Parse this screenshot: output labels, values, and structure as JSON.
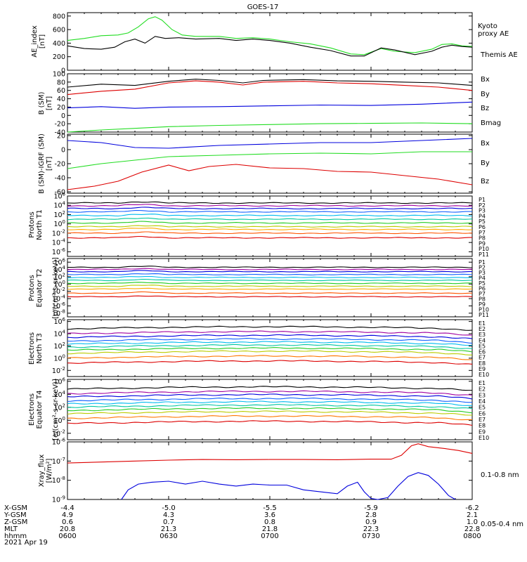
{
  "title": "GOES-17",
  "date": "2021 Apr 19",
  "colors": {
    "black": "#000000",
    "green": "#22dd22",
    "blue": "#0000dd",
    "red": "#dd0000"
  },
  "ramp11": [
    "#000000",
    "#a000a0",
    "#0000dd",
    "#1060ff",
    "#00bbee",
    "#00c8a0",
    "#22cc22",
    "#bbcc00",
    "#ffaa00",
    "#ff5500",
    "#dd0000"
  ],
  "ramp10": [
    "#000000",
    "#a000a0",
    "#0000dd",
    "#1060ff",
    "#00bbee",
    "#00c8a0",
    "#22cc22",
    "#bbcc00",
    "#ff7700",
    "#dd0000"
  ],
  "footer": {
    "row_labels": [
      "X-GSM",
      "Y-GSM",
      "Z-GSM",
      "MLT",
      "hhmm"
    ],
    "columns": [
      {
        "values": [
          "-4.4",
          "4.9",
          "0.6",
          "20.8",
          "0600"
        ]
      },
      {
        "values": [
          "-5.0",
          "4.3",
          "0.7",
          "21.3",
          "0630"
        ]
      },
      {
        "values": [
          "-5.5",
          "3.6",
          "0.8",
          "21.8",
          "0700"
        ]
      },
      {
        "values": [
          "-5.9",
          "2.8",
          "0.9",
          "22.3",
          "0730"
        ]
      },
      {
        "values": [
          "-6.2",
          "2.1",
          "1.0",
          "22.8",
          "0800"
        ]
      }
    ]
  },
  "chart_data": [
    {
      "type": "line",
      "ylabel": "AE_index [nT]",
      "ylim": [
        0,
        850
      ],
      "yticks": [
        "0",
        "200",
        "400",
        "600",
        "800"
      ],
      "x": [
        "0600",
        "0630",
        "0700",
        "0730",
        "0800"
      ],
      "series": [
        {
          "name": "Kyoto proxy AE",
          "color": "#22dd22",
          "points": [
            [
              0,
              440
            ],
            [
              5,
              470
            ],
            [
              10,
              510
            ],
            [
              15,
              520
            ],
            [
              18,
              550
            ],
            [
              21,
              640
            ],
            [
              24,
              760
            ],
            [
              26,
              790
            ],
            [
              28,
              740
            ],
            [
              31,
              600
            ],
            [
              34,
              520
            ],
            [
              38,
              500
            ],
            [
              45,
              500
            ],
            [
              50,
              470
            ],
            [
              55,
              480
            ],
            [
              60,
              460
            ],
            [
              66,
              420
            ],
            [
              72,
              390
            ],
            [
              78,
              330
            ],
            [
              84,
              240
            ],
            [
              88,
              230
            ],
            [
              93,
              320
            ],
            [
              97,
              280
            ],
            [
              103,
              260
            ],
            [
              108,
              310
            ],
            [
              111,
              380
            ],
            [
              114,
              390
            ],
            [
              117,
              360
            ],
            [
              120,
              350
            ]
          ]
        },
        {
          "name": "Themis AE",
          "color": "#000000",
          "points": [
            [
              0,
              360
            ],
            [
              5,
              320
            ],
            [
              10,
              310
            ],
            [
              14,
              340
            ],
            [
              17,
              420
            ],
            [
              20,
              460
            ],
            [
              23,
              400
            ],
            [
              26,
              500
            ],
            [
              29,
              470
            ],
            [
              33,
              480
            ],
            [
              38,
              460
            ],
            [
              45,
              470
            ],
            [
              50,
              440
            ],
            [
              55,
              460
            ],
            [
              60,
              440
            ],
            [
              66,
              400
            ],
            [
              72,
              340
            ],
            [
              78,
              290
            ],
            [
              84,
              210
            ],
            [
              88,
              210
            ],
            [
              93,
              330
            ],
            [
              97,
              300
            ],
            [
              103,
              230
            ],
            [
              108,
              280
            ],
            [
              111,
              340
            ],
            [
              114,
              370
            ],
            [
              117,
              350
            ],
            [
              120,
              340
            ]
          ]
        }
      ]
    },
    {
      "type": "line",
      "ylabel": "B (SM) [nT]",
      "ylim": [
        -40,
        100
      ],
      "yticks": [
        "-40",
        "-20",
        "0",
        "20",
        "40",
        "60",
        "80",
        "100"
      ],
      "series": [
        {
          "name": "Bx",
          "color": "#0000dd",
          "points": [
            [
              0,
              18
            ],
            [
              10,
              21
            ],
            [
              20,
              17
            ],
            [
              30,
              20
            ],
            [
              45,
              21
            ],
            [
              60,
              23
            ],
            [
              75,
              25
            ],
            [
              90,
              24
            ],
            [
              105,
              27
            ],
            [
              120,
              32
            ]
          ]
        },
        {
          "name": "By",
          "color": "#22dd22",
          "points": [
            [
              0,
              -40
            ],
            [
              10,
              -35
            ],
            [
              20,
              -31
            ],
            [
              30,
              -27
            ],
            [
              45,
              -24
            ],
            [
              60,
              -22
            ],
            [
              75,
              -20
            ],
            [
              90,
              -19
            ],
            [
              105,
              -18
            ],
            [
              120,
              -20
            ]
          ]
        },
        {
          "name": "Bz",
          "color": "#dd0000",
          "points": [
            [
              0,
              50
            ],
            [
              10,
              58
            ],
            [
              20,
              63
            ],
            [
              30,
              78
            ],
            [
              38,
              83
            ],
            [
              45,
              80
            ],
            [
              52,
              73
            ],
            [
              58,
              80
            ],
            [
              70,
              82
            ],
            [
              80,
              78
            ],
            [
              90,
              76
            ],
            [
              100,
              72
            ],
            [
              110,
              68
            ],
            [
              120,
              60
            ]
          ]
        },
        {
          "name": "Bmag",
          "color": "#000000",
          "points": [
            [
              0,
              68
            ],
            [
              10,
              75
            ],
            [
              20,
              72
            ],
            [
              30,
              82
            ],
            [
              38,
              87
            ],
            [
              45,
              84
            ],
            [
              52,
              78
            ],
            [
              58,
              84
            ],
            [
              70,
              86
            ],
            [
              80,
              83
            ],
            [
              90,
              82
            ],
            [
              100,
              80
            ],
            [
              110,
              78
            ],
            [
              120,
              72
            ]
          ]
        }
      ]
    },
    {
      "type": "line",
      "ylabel": "B (SM)-IGRF (SM) [nT]",
      "ylim": [
        -62,
        22
      ],
      "yticks": [
        "-60",
        "-40",
        "-20",
        "0",
        "20"
      ],
      "series": [
        {
          "name": "Bx",
          "color": "#0000dd",
          "points": [
            [
              0,
              13
            ],
            [
              10,
              10
            ],
            [
              20,
              3
            ],
            [
              30,
              2
            ],
            [
              45,
              6
            ],
            [
              60,
              8
            ],
            [
              75,
              10
            ],
            [
              90,
              10
            ],
            [
              105,
              13
            ],
            [
              120,
              16
            ]
          ]
        },
        {
          "name": "By",
          "color": "#22dd22",
          "points": [
            [
              0,
              -27
            ],
            [
              10,
              -20
            ],
            [
              20,
              -15
            ],
            [
              30,
              -10
            ],
            [
              45,
              -8
            ],
            [
              60,
              -6
            ],
            [
              75,
              -5
            ],
            [
              90,
              -6
            ],
            [
              105,
              -3
            ],
            [
              120,
              -3
            ]
          ]
        },
        {
          "name": "Bz",
          "color": "#dd0000",
          "points": [
            [
              0,
              -57
            ],
            [
              8,
              -52
            ],
            [
              15,
              -45
            ],
            [
              22,
              -32
            ],
            [
              30,
              -22
            ],
            [
              36,
              -30
            ],
            [
              42,
              -24
            ],
            [
              50,
              -21
            ],
            [
              60,
              -26
            ],
            [
              70,
              -27
            ],
            [
              80,
              -31
            ],
            [
              90,
              -32
            ],
            [
              100,
              -37
            ],
            [
              110,
              -42
            ],
            [
              120,
              -50
            ]
          ]
        }
      ]
    },
    {
      "type": "line",
      "log": true,
      "ylabel": "Protons North T1",
      "ylim": [
        -7,
        6
      ],
      "ticks": [
        "10^6",
        "10^4",
        "10^2",
        "10^0",
        "10^-2",
        "10^-4",
        "10^-6"
      ],
      "legend": [
        "P1",
        "P2",
        "P3",
        "P4",
        "P5",
        "P6",
        "P7",
        "P8",
        "P9",
        "P10",
        "P11"
      ],
      "levels": [
        4.5,
        3.9,
        3.3,
        2.6,
        1.8,
        1.0,
        0.2,
        -0.6,
        -1.2,
        -2.0,
        -3.0
      ]
    },
    {
      "type": "line",
      "log": true,
      "ylabel": "Protons Equator T2",
      "unit": "[p/(cm²-s-sr-keV)]",
      "ylim": [
        -9,
        7
      ],
      "ticks": [
        "10^6",
        "10^4",
        "10^2",
        "10^0",
        "10^-2",
        "10^-4",
        "10^-6",
        "10^-8"
      ],
      "legend": [
        "P1",
        "P2",
        "P3",
        "P4",
        "P5",
        "P6",
        "P7",
        "P8",
        "P9",
        "P10",
        "P11"
      ],
      "levels": [
        4.6,
        4.0,
        3.4,
        2.6,
        1.8,
        1.0,
        0.2,
        -0.6,
        -1.4,
        -2.5,
        -3.5
      ]
    },
    {
      "type": "line",
      "log": true,
      "ylabel": "Electrons North T3",
      "ylim": [
        -3,
        6.3
      ],
      "ticks": [
        "10^6",
        "10^4",
        "10^2",
        "10^0",
        "10^-2"
      ],
      "legend": [
        "E1",
        "E2",
        "E3",
        "E4",
        "E5",
        "E6",
        "E7",
        "E8",
        "E9",
        "E10"
      ],
      "levels": [
        4.8,
        4.0,
        3.4,
        2.8,
        2.3,
        1.8,
        1.3,
        0.8,
        0.0,
        -0.8
      ]
    },
    {
      "type": "line",
      "log": true,
      "ylabel": "Electrons Equator T4",
      "unit": "[e/(cm²-s-sr-keV)]",
      "ylim": [
        -3,
        6.3
      ],
      "ticks": [
        "10^6",
        "10^4",
        "10^2",
        "10^0",
        "10^-2"
      ],
      "legend": [
        "E1",
        "E2",
        "E3",
        "E4",
        "E5",
        "E6",
        "E7",
        "E8",
        "E9",
        "E10"
      ],
      "levels": [
        4.8,
        4.1,
        3.6,
        3.0,
        2.5,
        2.0,
        1.5,
        1.0,
        0.3,
        -0.5
      ]
    },
    {
      "type": "line",
      "log": true,
      "ylabel": "Xray_flux [W/m²]",
      "ylim": [
        -9,
        -6
      ],
      "ticks": [
        "10^-6",
        "10^-7",
        "10^-8",
        "10^-9"
      ],
      "series": [
        {
          "name": "0.1-0.8 nm",
          "color": "#dd0000",
          "points": [
            [
              0,
              -7.1
            ],
            [
              10,
              -7.05
            ],
            [
              20,
              -7.0
            ],
            [
              30,
              -6.95
            ],
            [
              40,
              -6.92
            ],
            [
              50,
              -6.93
            ],
            [
              60,
              -6.92
            ],
            [
              70,
              -6.92
            ],
            [
              80,
              -6.93
            ],
            [
              90,
              -6.9
            ],
            [
              96,
              -6.9
            ],
            [
              99,
              -6.7
            ],
            [
              102,
              -6.2
            ],
            [
              104,
              -6.1
            ],
            [
              107,
              -6.25
            ],
            [
              112,
              -6.35
            ],
            [
              116,
              -6.45
            ],
            [
              120,
              -6.6
            ]
          ]
        },
        {
          "name": "0.05-0.4 nm",
          "color": "#0000dd",
          "points": [
            [
              16,
              -9.0
            ],
            [
              18,
              -8.5
            ],
            [
              21,
              -8.2
            ],
            [
              25,
              -8.1
            ],
            [
              30,
              -8.05
            ],
            [
              35,
              -8.2
            ],
            [
              40,
              -8.05
            ],
            [
              45,
              -8.2
            ],
            [
              50,
              -8.3
            ],
            [
              55,
              -8.2
            ],
            [
              60,
              -8.25
            ],
            [
              65,
              -8.25
            ],
            [
              70,
              -8.5
            ],
            [
              75,
              -8.6
            ],
            [
              80,
              -8.7
            ],
            [
              83,
              -8.3
            ],
            [
              86,
              -8.1
            ],
            [
              88,
              -8.6
            ],
            [
              90,
              -8.95
            ],
            [
              92,
              -9.0
            ],
            [
              95,
              -8.9
            ],
            [
              98,
              -8.3
            ],
            [
              101,
              -7.8
            ],
            [
              104,
              -7.6
            ],
            [
              107,
              -7.75
            ],
            [
              110,
              -8.2
            ],
            [
              113,
              -8.8
            ],
            [
              115,
              -9.0
            ]
          ]
        }
      ]
    }
  ]
}
